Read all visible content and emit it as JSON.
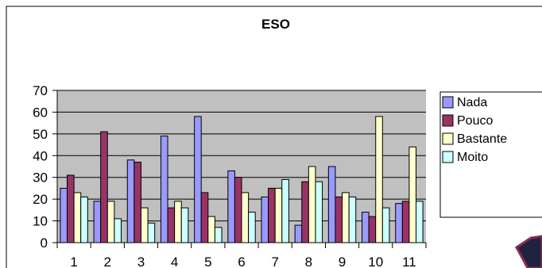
{
  "chart_data": {
    "type": "bar",
    "title": "ESO",
    "categories": [
      "1",
      "2",
      "3",
      "4",
      "5",
      "6",
      "7",
      "8",
      "9",
      "10",
      "11"
    ],
    "series": [
      {
        "name": "Nada",
        "color": "#9999ff",
        "values": [
          25,
          19,
          38,
          49,
          58,
          33,
          21,
          8,
          35,
          14,
          18
        ]
      },
      {
        "name": "Pouco",
        "color": "#993366",
        "values": [
          31,
          51,
          37,
          16,
          23,
          30,
          25,
          28,
          21,
          12,
          19
        ]
      },
      {
        "name": "Bastante",
        "color": "#ffffcc",
        "values": [
          23,
          19,
          16,
          19,
          12,
          23,
          25,
          35,
          23,
          58,
          44
        ]
      },
      {
        "name": "Moito",
        "color": "#ccffff",
        "values": [
          21,
          11,
          9,
          16,
          7,
          14,
          29,
          28,
          21,
          16,
          19
        ]
      }
    ],
    "ylim": [
      0,
      70
    ],
    "yticks": [
      0,
      10,
      20,
      30,
      40,
      50,
      60,
      70
    ],
    "grid": true,
    "plot_background": "#c0c0c0",
    "legend_position": "right"
  }
}
